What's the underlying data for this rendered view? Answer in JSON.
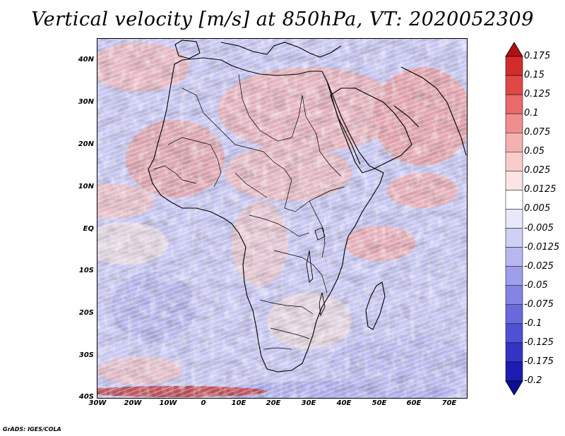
{
  "title": "Vertical velocity [m/s] at 850hPa, VT: 2020052309",
  "credit": "GrADS: IGES/COLA",
  "map": {
    "lon_range": [
      -30,
      75
    ],
    "lat_range": [
      -40,
      45
    ],
    "y_ticks": [
      {
        "label": "40N",
        "lat": 40
      },
      {
        "label": "30N",
        "lat": 30
      },
      {
        "label": "20N",
        "lat": 20
      },
      {
        "label": "10N",
        "lat": 10
      },
      {
        "label": "EQ",
        "lat": 0
      },
      {
        "label": "10S",
        "lat": -10
      },
      {
        "label": "20S",
        "lat": -20
      },
      {
        "label": "30S",
        "lat": -30
      },
      {
        "label": "40S",
        "lat": -40
      }
    ],
    "x_ticks": [
      {
        "label": "30W",
        "lon": -30
      },
      {
        "label": "20W",
        "lon": -20
      },
      {
        "label": "10W",
        "lon": -10
      },
      {
        "label": "0",
        "lon": 0
      },
      {
        "label": "10E",
        "lon": 10
      },
      {
        "label": "20E",
        "lon": 20
      },
      {
        "label": "30E",
        "lon": 30
      },
      {
        "label": "40E",
        "lon": 40
      },
      {
        "label": "50E",
        "lon": 50
      },
      {
        "label": "60E",
        "lon": 60
      },
      {
        "label": "70E",
        "lon": 70
      }
    ]
  },
  "colorbar": {
    "colors": [
      "#b01010",
      "#d22c2c",
      "#e04848",
      "#e86a6a",
      "#f08e8e",
      "#f5b0b0",
      "#f9cccc",
      "#fce4e4",
      "#ffffff",
      "#e8e8fa",
      "#d0d0f4",
      "#b8b8f0",
      "#9e9eea",
      "#8484e4",
      "#6a6ade",
      "#5050d4",
      "#3434c4",
      "#1c1cb0",
      "#0e0e98"
    ],
    "labels": [
      "0.175",
      "0.15",
      "0.125",
      "0.1",
      "0.075",
      "0.05",
      "0.025",
      "0.0125",
      "0.005",
      "-0.005",
      "-0.0125",
      "-0.025",
      "-0.05",
      "-0.075",
      "-0.1",
      "-0.125",
      "-0.175",
      "-0.2"
    ]
  }
}
